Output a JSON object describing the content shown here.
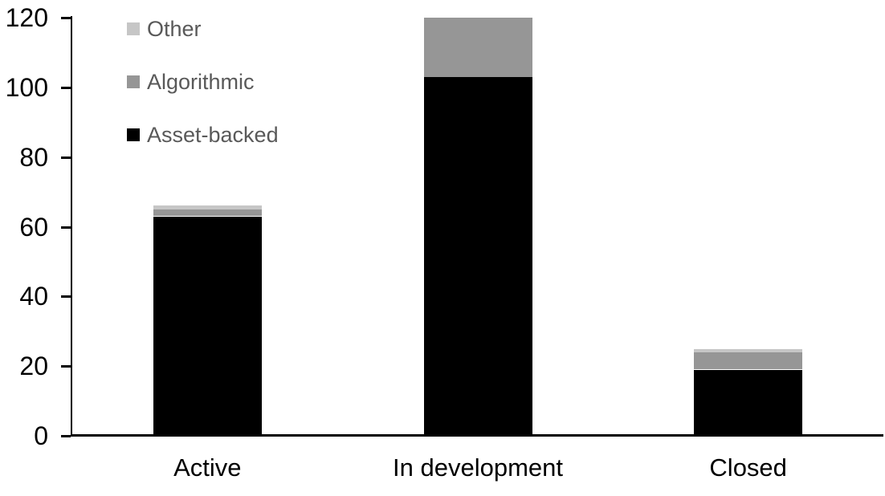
{
  "chart_data": {
    "type": "bar",
    "stacked": true,
    "title": "",
    "xlabel": "",
    "ylabel": "",
    "categories": [
      "Active",
      "In development",
      "Closed"
    ],
    "series": [
      {
        "name": "Asset-backed",
        "color": "#000000",
        "values": [
          63,
          103,
          19
        ]
      },
      {
        "name": "Algorithmic",
        "color": "#969696",
        "values": [
          2,
          17,
          5
        ]
      },
      {
        "name": "Other",
        "color": "#c6c6c6",
        "values": [
          1,
          0,
          1
        ]
      }
    ],
    "totals": [
      66,
      120,
      25
    ],
    "ylim": [
      0,
      120
    ],
    "yticks": [
      0,
      20,
      40,
      60,
      80,
      100,
      120
    ],
    "grid": false,
    "legend_position": "top-left",
    "legend_order_top_to_bottom": [
      "Other",
      "Algorithmic",
      "Asset-backed"
    ],
    "legend_text_color": "#595959",
    "axis_color": "#000000",
    "tick_label_color": "#000000",
    "background_color": "#ffffff"
  }
}
